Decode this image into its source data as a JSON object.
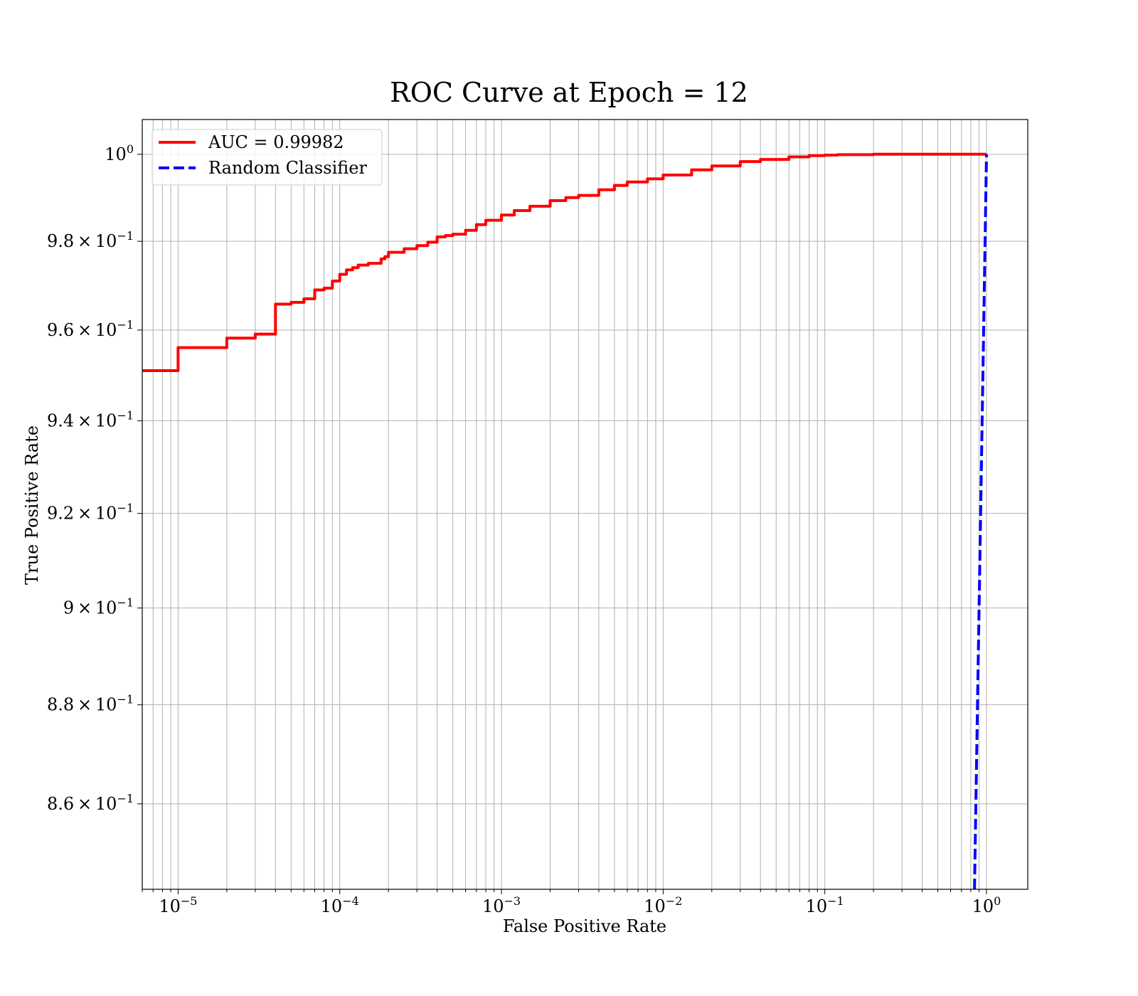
{
  "chart_data": {
    "type": "line",
    "title": "ROC Curve at Epoch = 12",
    "xlabel": "False Positive Rate",
    "ylabel": "True Positive Rate",
    "xscale": "log",
    "yscale": "log",
    "xlim": [
      6e-06,
      1.8
    ],
    "ylim": [
      0.8431,
      1.0081
    ],
    "grid": "on",
    "legend_placement": "upper-left",
    "x_ticks": [
      {
        "value": 1e-05,
        "base": "10",
        "exp": "−5"
      },
      {
        "value": 0.0001,
        "base": "10",
        "exp": "−4"
      },
      {
        "value": 0.001,
        "base": "10",
        "exp": "−3"
      },
      {
        "value": 0.01,
        "base": "10",
        "exp": "−2"
      },
      {
        "value": 0.1,
        "base": "10",
        "exp": "−1"
      },
      {
        "value": 1,
        "base": "10",
        "exp": "0"
      }
    ],
    "y_ticks": [
      {
        "value": 0.86,
        "mant": "8.6",
        "base": "10",
        "exp": "−1"
      },
      {
        "value": 0.88,
        "mant": "8.8",
        "base": "10",
        "exp": "−1"
      },
      {
        "value": 0.9,
        "mant": "9",
        "base": "10",
        "exp": "−1"
      },
      {
        "value": 0.92,
        "mant": "9.2",
        "base": "10",
        "exp": "−1"
      },
      {
        "value": 0.94,
        "mant": "9.4",
        "base": "10",
        "exp": "−1"
      },
      {
        "value": 0.96,
        "mant": "9.6",
        "base": "10",
        "exp": "−1"
      },
      {
        "value": 0.98,
        "mant": "9.8",
        "base": "10",
        "exp": "−1"
      },
      {
        "value": 1.0,
        "mant": "",
        "base": "10",
        "exp": "0"
      }
    ],
    "series": [
      {
        "name": "AUC = 0.99982",
        "color": "#ff0000",
        "style": "solid",
        "step": true,
        "x": [
          6e-06,
          1e-05,
          2e-05,
          3e-05,
          4e-05,
          5e-05,
          6e-05,
          7e-05,
          8e-05,
          9e-05,
          0.0001,
          0.00011,
          0.00012,
          0.00013,
          0.00015,
          0.00018,
          0.00019,
          0.0002,
          0.00025,
          0.0003,
          0.00035,
          0.0004,
          0.00045,
          0.0005,
          0.0006,
          0.0007,
          0.0008,
          0.001,
          0.0012,
          0.0015,
          0.002,
          0.0025,
          0.003,
          0.004,
          0.005,
          0.006,
          0.008,
          0.01,
          0.015,
          0.02,
          0.03,
          0.04,
          0.06,
          0.08,
          0.1,
          0.12,
          0.2,
          0.5,
          1.0
        ],
        "y": [
          0.951,
          0.9561,
          0.9582,
          0.9591,
          0.9658,
          0.9662,
          0.967,
          0.969,
          0.9694,
          0.971,
          0.9725,
          0.9735,
          0.974,
          0.9746,
          0.975,
          0.976,
          0.9765,
          0.9775,
          0.9783,
          0.979,
          0.9798,
          0.981,
          0.9813,
          0.9816,
          0.9825,
          0.9838,
          0.9848,
          0.986,
          0.987,
          0.988,
          0.9893,
          0.99,
          0.9905,
          0.9918,
          0.9928,
          0.9936,
          0.9943,
          0.9952,
          0.9964,
          0.9973,
          0.9983,
          0.9988,
          0.9994,
          0.9997,
          0.9998,
          0.9999,
          1.0,
          1.0,
          1.0
        ]
      },
      {
        "name": "Random Classifier",
        "color": "#0000ff",
        "style": "dashed",
        "x": [
          0.8431,
          1.0
        ],
        "y": [
          0.8431,
          1.0
        ]
      }
    ]
  }
}
